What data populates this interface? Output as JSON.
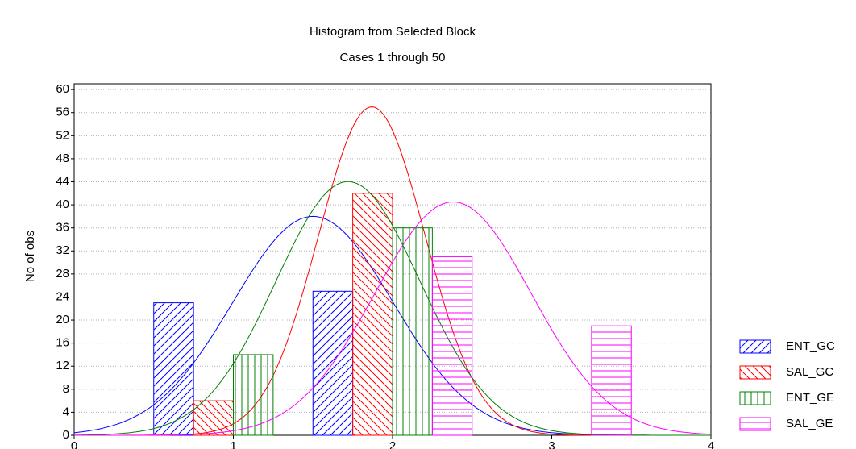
{
  "chart_data": {
    "type": "histogram",
    "title": "Histogram from Selected Block",
    "subtitle": "Cases 1 through 50",
    "y_label": "No of obs",
    "bins": [
      0.5,
      1.5,
      2.5,
      3.5
    ],
    "series": [
      {
        "name": "ENT_GC",
        "color": "#0000ff",
        "values": [
          23,
          25,
          0
        ],
        "mean": 1.5,
        "sd": 0.504
      },
      {
        "name": "SAL_GC",
        "color": "#ff0000",
        "values": [
          6,
          42,
          0
        ],
        "mean": 1.87,
        "sd": 0.336
      },
      {
        "name": "ENT_GE",
        "color": "#008000",
        "values": [
          14,
          36,
          0
        ],
        "mean": 1.72,
        "sd": 0.453
      },
      {
        "name": "SAL_GE",
        "color": "#ff00ff",
        "values": [
          0,
          31,
          19
        ],
        "mean": 2.38,
        "sd": 0.4925
      }
    ],
    "xlim": [
      0,
      4
    ],
    "xticks": [
      0,
      1,
      2,
      3,
      4
    ],
    "ylim": [
      0,
      61
    ],
    "yticks": [
      0,
      4,
      8,
      12,
      16,
      20,
      24,
      28,
      32,
      36,
      40,
      44,
      48,
      52,
      56,
      60
    ],
    "grid": true,
    "legend": "lower right"
  }
}
